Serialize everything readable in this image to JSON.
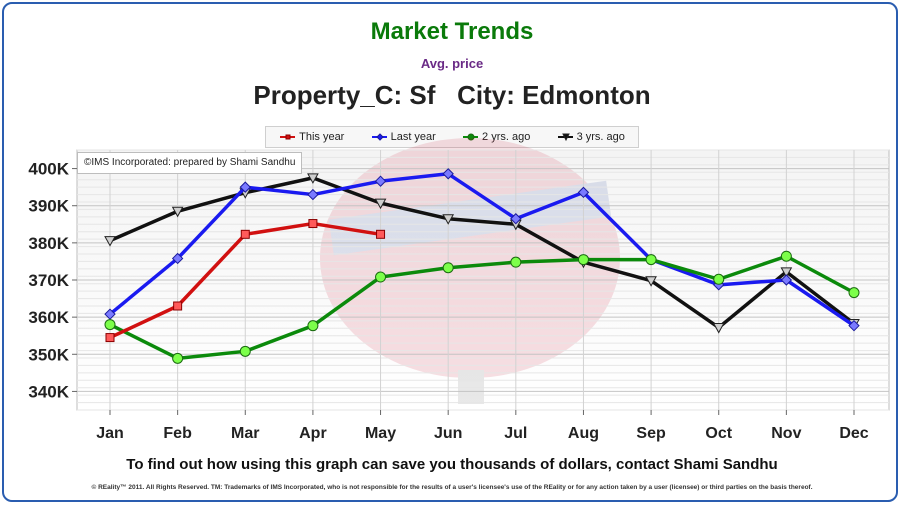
{
  "header": {
    "title": "Market Trends",
    "subtitle": "Avg. price",
    "heading": "Property_C: Sf   City: Edmonton"
  },
  "credit": "©IMS Incorporated: prepared by Shami Sandhu",
  "cta": "To find out how using this graph can save you thousands of dollars, contact Shami Sandhu",
  "footer": "© REality™ 2011. All Rights Reserved. TM: Trademarks of IMS Incorporated, who is not responsible for the results of a user's licensee's use of the REality  or for any action taken by a user (licensee) or third parties on the basis thereof.",
  "colors": {
    "frame_border": "#2a5db0",
    "title": "#0a7a0a",
    "subtitle": "#6a2a86"
  },
  "chart_data": {
    "type": "line",
    "categories": [
      "Jan",
      "Feb",
      "Mar",
      "Apr",
      "May",
      "Jun",
      "Jul",
      "Aug",
      "Sep",
      "Oct",
      "Nov",
      "Dec"
    ],
    "ylim": [
      335000,
      405000
    ],
    "yticks": [
      340000,
      350000,
      360000,
      370000,
      380000,
      390000,
      400000
    ],
    "ytick_labels": [
      "340K",
      "350K",
      "360K",
      "370K",
      "380K",
      "390K",
      "400K"
    ],
    "grid": true,
    "legend_position": "top-center",
    "series": [
      {
        "name": "This year",
        "color": "#d11010",
        "marker": "square",
        "values": [
          354500,
          363000,
          382300,
          385200,
          382300,
          null,
          null,
          null,
          null,
          null,
          null,
          null
        ]
      },
      {
        "name": "Last year",
        "color": "#1a1af0",
        "marker": "diamond",
        "values": [
          360800,
          375800,
          395000,
          393000,
          396600,
          398600,
          386500,
          393600,
          375500,
          368700,
          370000,
          357700
        ]
      },
      {
        "name": "2 yrs. ago",
        "color": "#0b8a0b",
        "marker": "circle",
        "values": [
          358000,
          348900,
          350800,
          357700,
          370800,
          373300,
          374800,
          375500,
          375500,
          370200,
          376400,
          366600
        ]
      },
      {
        "name": "3 yrs. ago",
        "color": "#111111",
        "marker": "triangle",
        "values": [
          380600,
          388500,
          393500,
          397500,
          390700,
          386500,
          385000,
          374800,
          369800,
          357200,
          372200,
          358300
        ]
      }
    ]
  }
}
